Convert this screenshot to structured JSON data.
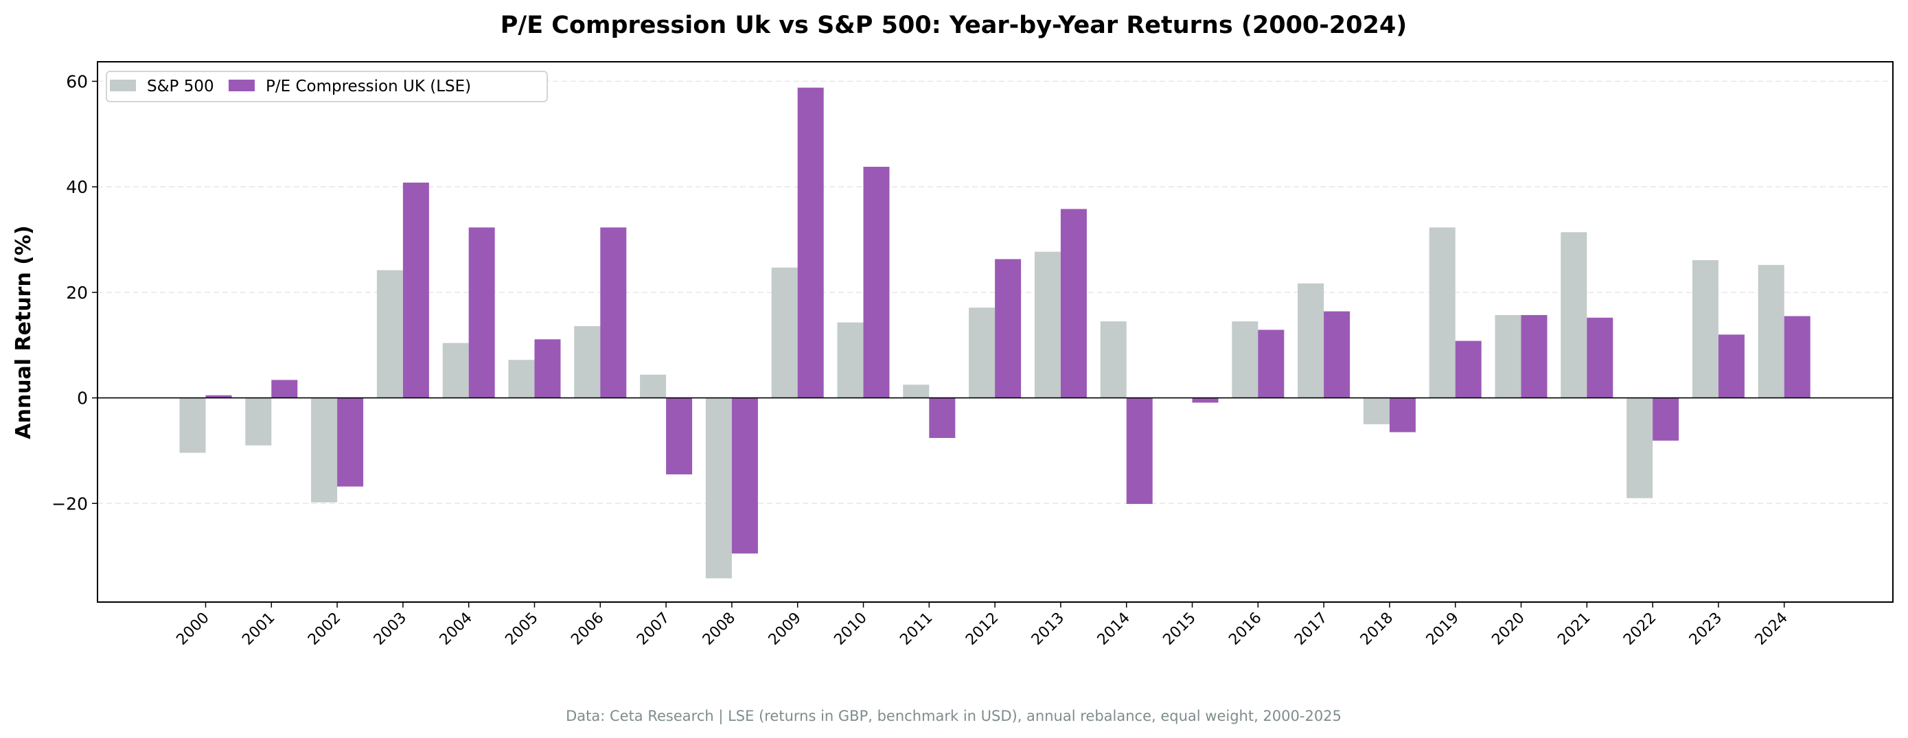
{
  "chart_data": {
    "type": "bar",
    "title": "P/E Compression Uk vs S&P 500: Year-by-Year Returns (2000-2024)",
    "xlabel": "",
    "ylabel": "Annual Return (%)",
    "ylim": [
      -38.7,
      63.7
    ],
    "yticks": [
      -20,
      0,
      20,
      40,
      60
    ],
    "ytick_labels": [
      "−20",
      "0",
      "20",
      "40",
      "60"
    ],
    "grid": "horizontal dashed",
    "legend_position": "top-left",
    "categories": [
      "2000",
      "2001",
      "2002",
      "2003",
      "2004",
      "2005",
      "2006",
      "2007",
      "2008",
      "2009",
      "2010",
      "2011",
      "2012",
      "2013",
      "2014",
      "2015",
      "2016",
      "2017",
      "2018",
      "2019",
      "2020",
      "2021",
      "2022",
      "2023",
      "2024"
    ],
    "series": [
      {
        "name": "S&P 500",
        "color": "#c3cbcb",
        "values": [
          -10.4,
          -9.0,
          -19.8,
          24.2,
          10.4,
          7.2,
          13.6,
          4.4,
          -34.2,
          24.7,
          14.3,
          2.5,
          17.1,
          27.7,
          14.5,
          0.0,
          14.5,
          21.7,
          -5.0,
          32.3,
          15.7,
          31.4,
          -19.0,
          26.1,
          25.2
        ]
      },
      {
        "name": "P/E Compression UK (LSE)",
        "color": "#9b59b6",
        "values": [
          0.5,
          3.4,
          -16.8,
          40.8,
          32.3,
          11.1,
          32.3,
          -14.5,
          -29.5,
          58.8,
          43.8,
          -7.6,
          26.3,
          35.8,
          -20.1,
          -0.9,
          12.9,
          16.4,
          -6.5,
          10.8,
          15.7,
          15.2,
          -8.1,
          12.0,
          15.5
        ]
      }
    ],
    "footnote": "Data: Ceta Research | LSE (returns in GBP, benchmark in USD), annual rebalance, equal weight, 2000-2025"
  }
}
